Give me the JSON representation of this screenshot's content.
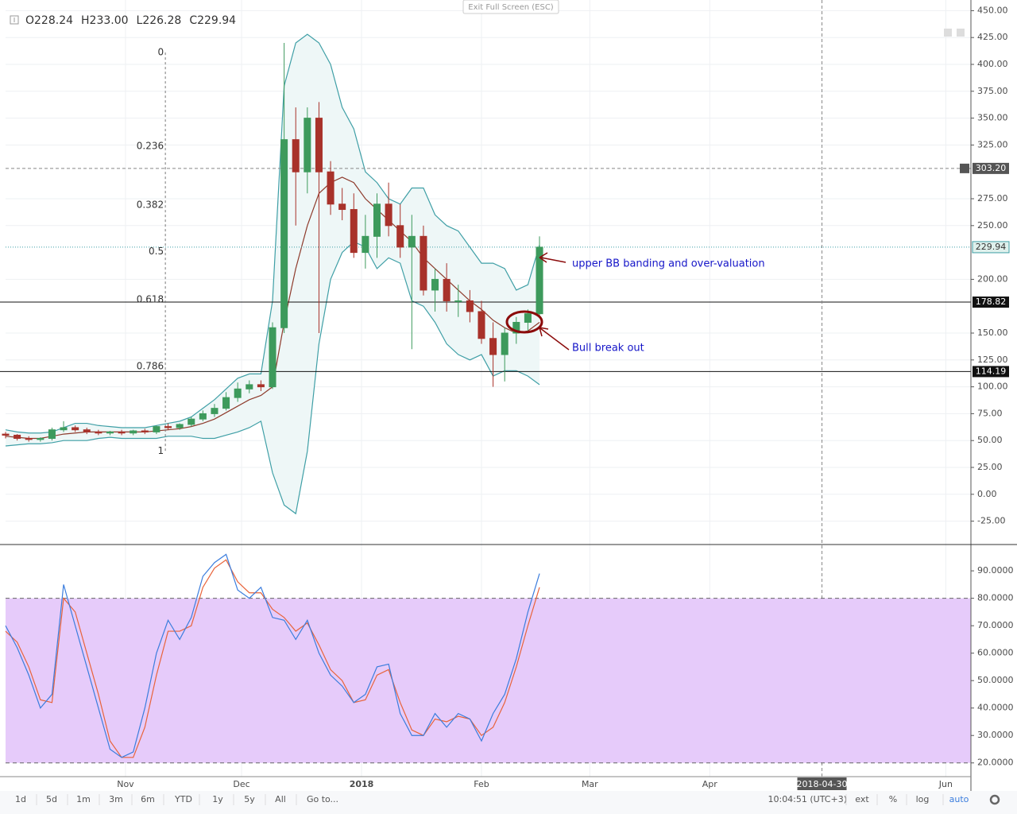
{
  "exit_button": "Exit Full Screen (ESC)",
  "header": [
    {
      "value": 228.24,
      "label": "O228.24"
    },
    {
      "value": 233.0,
      "label": "H233.00"
    },
    {
      "value": 226.28,
      "label": "L226.28"
    },
    {
      "value": 229.94,
      "label": "C229.94"
    }
  ],
  "toolbar": {
    "ranges": [
      "1d",
      "5d",
      "1m",
      "3m",
      "6m",
      "YTD",
      "1y",
      "5y",
      "All"
    ],
    "goto": "Go to...",
    "clock": "10:04:51 (UTC+3)",
    "options": [
      "ext",
      "%",
      "log",
      "auto"
    ]
  },
  "chart_data": [
    {
      "type": "candlestick",
      "x": [
        0,
        3,
        6,
        9,
        12,
        15,
        18,
        21,
        24,
        27,
        30,
        33,
        36,
        39,
        42,
        45,
        48,
        51,
        54,
        57,
        60,
        63,
        66,
        69,
        72,
        75,
        78,
        81,
        84,
        87,
        90,
        93,
        96,
        99,
        102,
        105,
        108,
        111,
        114,
        117,
        120,
        123,
        126,
        129,
        132,
        135,
        138
      ],
      "open": [
        56,
        55,
        52,
        51,
        52,
        60,
        62,
        60,
        58,
        57,
        58,
        57,
        59,
        58,
        63,
        62,
        65,
        70,
        75,
        80,
        90,
        98,
        102,
        100,
        155,
        330,
        300,
        350,
        300,
        270,
        265,
        225,
        240,
        270,
        250,
        230,
        240,
        190,
        200,
        180,
        180,
        170,
        145,
        130,
        150,
        160,
        168
      ],
      "high": [
        58,
        56,
        54,
        53,
        62,
        68,
        64,
        62,
        60,
        59,
        60,
        60,
        61,
        64,
        66,
        66,
        72,
        78,
        84,
        95,
        104,
        106,
        106,
        160,
        420,
        360,
        360,
        365,
        310,
        285,
        280,
        260,
        280,
        290,
        270,
        260,
        250,
        210,
        215,
        195,
        190,
        180,
        160,
        155,
        165,
        172,
        240
      ],
      "low": [
        52,
        50,
        49,
        49,
        50,
        58,
        58,
        56,
        55,
        55,
        55,
        55,
        56,
        56,
        60,
        60,
        63,
        68,
        72,
        78,
        86,
        94,
        96,
        98,
        150,
        250,
        280,
        150,
        260,
        255,
        220,
        210,
        220,
        240,
        220,
        135,
        185,
        170,
        170,
        165,
        160,
        140,
        100,
        105,
        140,
        150,
        165
      ],
      "close": [
        55,
        52,
        51,
        52,
        60,
        62,
        60,
        58,
        57,
        58,
        57,
        59,
        58,
        63,
        62,
        65,
        70,
        75,
        80,
        90,
        98,
        102,
        100,
        155,
        330,
        300,
        350,
        300,
        270,
        265,
        225,
        240,
        270,
        250,
        230,
        240,
        190,
        200,
        180,
        180,
        170,
        145,
        130,
        150,
        160,
        168,
        229.94
      ],
      "up_color": "#3d9a5c",
      "down_color": "#a8322a",
      "bands": {
        "upper": [
          60,
          58,
          57,
          57,
          58,
          62,
          66,
          66,
          64,
          63,
          62,
          62,
          62,
          64,
          66,
          68,
          72,
          80,
          88,
          98,
          108,
          112,
          112,
          180,
          380,
          420,
          428,
          420,
          400,
          360,
          340,
          300,
          290,
          275,
          270,
          285,
          285,
          260,
          250,
          245,
          230,
          215,
          215,
          210,
          190,
          195,
          232
        ],
        "middle": [
          54,
          53,
          52,
          52,
          54,
          56,
          57,
          58,
          58,
          58,
          58,
          58,
          58,
          59,
          60,
          61,
          63,
          66,
          70,
          76,
          82,
          88,
          92,
          100,
          160,
          210,
          250,
          280,
          290,
          295,
          290,
          275,
          265,
          255,
          245,
          235,
          220,
          210,
          200,
          190,
          180,
          172,
          162,
          155,
          150,
          152,
          160
        ],
        "lower": [
          45,
          46,
          47,
          47,
          48,
          50,
          50,
          50,
          52,
          53,
          52,
          52,
          52,
          52,
          54,
          54,
          54,
          52,
          52,
          55,
          58,
          62,
          68,
          20,
          -10,
          -18,
          40,
          140,
          200,
          225,
          235,
          230,
          210,
          220,
          215,
          180,
          175,
          160,
          140,
          130,
          125,
          130,
          110,
          115,
          115,
          110,
          102
        ],
        "color": "#3f9fa6",
        "middle_color": "#8e3b2c",
        "fill": "#eef7f7"
      },
      "xlim": [
        0,
        249.5
      ],
      "xticks": [
        {
          "value": 31,
          "label": "Nov"
        },
        {
          "value": 61,
          "label": "Dec"
        },
        {
          "value": 92,
          "label": "2018"
        },
        {
          "value": 123,
          "label": "Feb"
        },
        {
          "value": 151,
          "label": "Mar"
        },
        {
          "value": 182,
          "label": "Apr"
        },
        {
          "value": 243,
          "label": "Jun"
        }
      ],
      "grid": true,
      "ylim": [
        -46,
        454
      ],
      "yticks": [
        {
          "value": 450,
          "label": "450.00"
        },
        {
          "value": 425,
          "label": "425.00"
        },
        {
          "value": 400,
          "label": "400.00"
        },
        {
          "value": 375,
          "label": "375.00"
        },
        {
          "value": 350,
          "label": "350.00"
        },
        {
          "value": 325,
          "label": "325.00"
        },
        {
          "value": 275,
          "label": "275.00"
        },
        {
          "value": 250,
          "label": "250.00"
        },
        {
          "value": 200,
          "label": "200.00"
        },
        {
          "value": 150,
          "label": "150.00"
        },
        {
          "value": 125,
          "label": "125.00"
        },
        {
          "value": 100,
          "label": "100.00"
        },
        {
          "value": 75,
          "label": "75.00"
        },
        {
          "value": 50,
          "label": "50.00"
        },
        {
          "value": 25,
          "label": "25.00"
        },
        {
          "value": 0,
          "label": "0.00"
        },
        {
          "value": -25,
          "label": "-25.00"
        }
      ],
      "levels": [
        {
          "value": 178.82,
          "label": "178.82"
        },
        {
          "value": 114.19,
          "label": "114.19"
        }
      ],
      "last_price": {
        "value": 229.94,
        "label": "229.94"
      },
      "crosshair": {
        "y": {
          "value": 303.2,
          "label": "303.20"
        },
        "x": {
          "value": 211,
          "label": "2018-04-30"
        }
      },
      "fib": {
        "x": 41.3,
        "levels": [
          {
            "label": "0",
            "value": 411
          },
          {
            "label": "0.236",
            "value": 324
          },
          {
            "label": "0.382",
            "value": 269
          },
          {
            "label": "0.5",
            "value": 226
          },
          {
            "label": "0.618",
            "value": 181
          },
          {
            "label": "0.786",
            "value": 119
          },
          {
            "label": "1",
            "value": 40
          }
        ]
      },
      "annotations": [
        "upper BB banding and over-valuation",
        "Bull break out"
      ]
    },
    {
      "type": "line",
      "x": [
        0,
        3,
        6,
        9,
        12,
        15,
        18,
        21,
        24,
        27,
        30,
        33,
        36,
        39,
        42,
        45,
        48,
        51,
        54,
        57,
        60,
        63,
        66,
        69,
        72,
        75,
        78,
        81,
        84,
        87,
        90,
        93,
        96,
        99,
        102,
        105,
        108,
        111,
        114,
        117,
        120,
        123,
        126,
        129,
        132,
        135,
        138
      ],
      "series": [
        {
          "color": "#3b7ddd",
          "values": [
            70,
            62,
            52,
            40,
            45,
            85,
            70,
            55,
            40,
            25,
            22,
            24,
            40,
            60,
            72,
            65,
            73,
            88,
            93,
            96,
            83,
            80,
            84,
            73,
            72,
            65,
            72,
            60,
            52,
            48,
            42,
            45,
            55,
            56,
            38,
            30,
            30,
            38,
            33,
            38,
            36,
            28,
            38,
            45,
            58,
            75,
            89
          ]
        },
        {
          "color": "#e8633a",
          "values": [
            68,
            64,
            55,
            43,
            42,
            80,
            75,
            60,
            45,
            28,
            22,
            22,
            33,
            52,
            68,
            68,
            70,
            84,
            91,
            94,
            86,
            82,
            82,
            76,
            73,
            68,
            71,
            63,
            54,
            50,
            42,
            43,
            52,
            54,
            42,
            32,
            30,
            36,
            35,
            37,
            36,
            30,
            33,
            42,
            55,
            70,
            84
          ]
        }
      ],
      "xlim": [
        0,
        249.5
      ],
      "ylim": [
        15,
        99.3
      ],
      "yticks": [
        {
          "value": 90,
          "label": "90.0000"
        },
        {
          "value": 80,
          "label": "80.0000"
        },
        {
          "value": 70,
          "label": "70.0000"
        },
        {
          "value": 60,
          "label": "60.0000"
        },
        {
          "value": 50,
          "label": "50.0000"
        },
        {
          "value": 40,
          "label": "40.0000"
        },
        {
          "value": 30,
          "label": "30.0000"
        },
        {
          "value": 20,
          "label": "20.0000"
        }
      ],
      "band": [
        20,
        80
      ],
      "band_color": "#e6cbfa"
    }
  ]
}
